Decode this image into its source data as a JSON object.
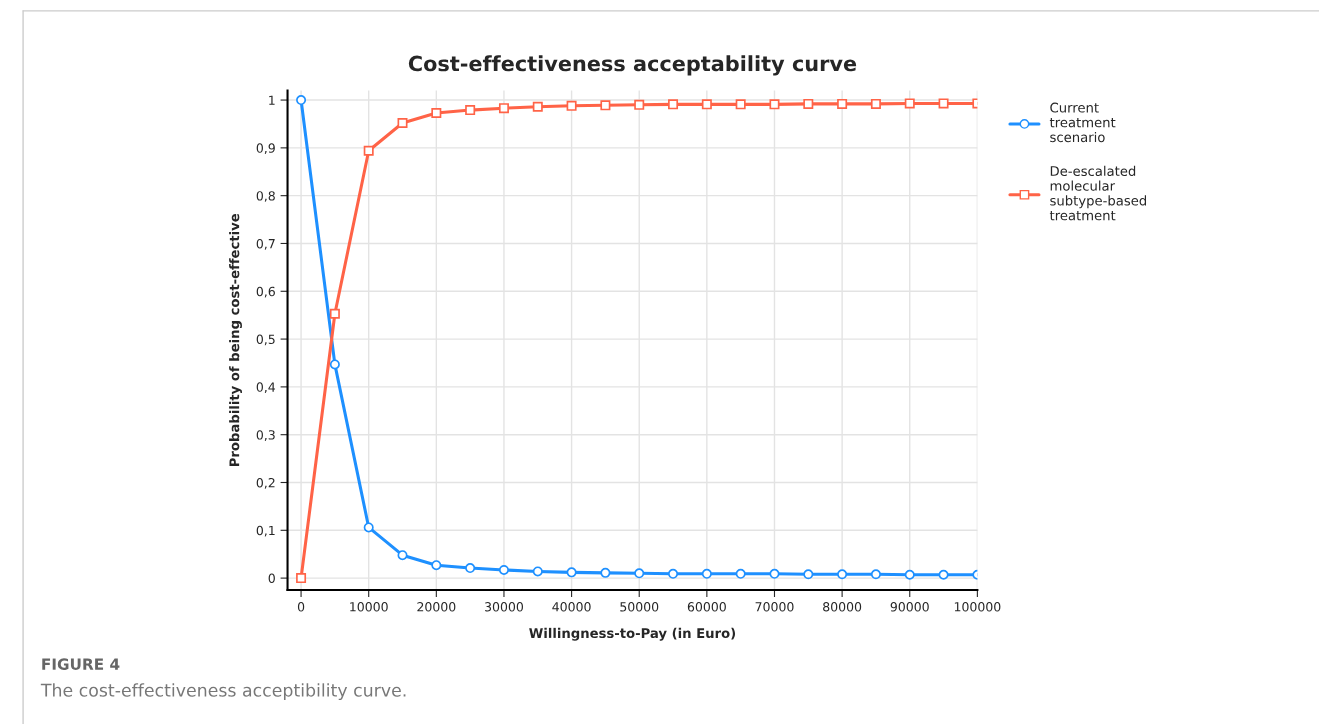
{
  "chart_data": {
    "type": "line",
    "title": "Cost-effectiveness acceptability curve",
    "xlabel": "Willingness-to-Pay (in Euro)",
    "ylabel": "Probability of being cost-effective",
    "x": [
      0,
      5000,
      10000,
      15000,
      20000,
      25000,
      30000,
      35000,
      40000,
      45000,
      50000,
      55000,
      60000,
      65000,
      70000,
      75000,
      80000,
      85000,
      90000,
      95000,
      100000
    ],
    "series": [
      {
        "name": "Current treatment scenario",
        "color": "#1e90ff",
        "marker": "circle",
        "values": [
          1,
          0.447,
          0.106,
          0.048,
          0.027,
          0.021,
          0.017,
          0.014,
          0.012,
          0.011,
          0.01,
          0.009,
          0.009,
          0.009,
          0.009,
          0.008,
          0.008,
          0.008,
          0.007,
          0.007,
          0.007
        ]
      },
      {
        "name": "De-escalated molecular subtype-based treatment",
        "color": "#ff6347",
        "marker": "square",
        "values": [
          0,
          0.553,
          0.894,
          0.952,
          0.973,
          0.979,
          0.983,
          0.986,
          0.988,
          0.989,
          0.99,
          0.991,
          0.991,
          0.991,
          0.991,
          0.992,
          0.992,
          0.992,
          0.993,
          0.993,
          0.993
        ]
      }
    ],
    "xlim": [
      -2000,
      100000
    ],
    "xticks": [
      0,
      10000,
      20000,
      30000,
      40000,
      50000,
      60000,
      70000,
      80000,
      90000,
      100000
    ],
    "ylim": [
      -0.025,
      1.02
    ],
    "yticks": [
      0,
      {
        "value": 0.1,
        "label": "0,1"
      },
      {
        "value": 0.2,
        "label": "0,2"
      },
      {
        "value": 0.3,
        "label": "0,3"
      },
      {
        "value": 0.4,
        "label": "0,4"
      },
      {
        "value": 0.5,
        "label": "0,5"
      },
      {
        "value": 0.6,
        "label": "0,6"
      },
      {
        "value": 0.7,
        "label": "0,7"
      },
      {
        "value": 0.8,
        "label": "0,8"
      },
      {
        "value": 0.9,
        "label": "0,9"
      },
      1
    ],
    "grid": true,
    "legend": "right",
    "line_style": "solid",
    "annotations": [
      "FIGURE 4",
      "The cost-effectiveness acceptibility curve."
    ]
  }
}
